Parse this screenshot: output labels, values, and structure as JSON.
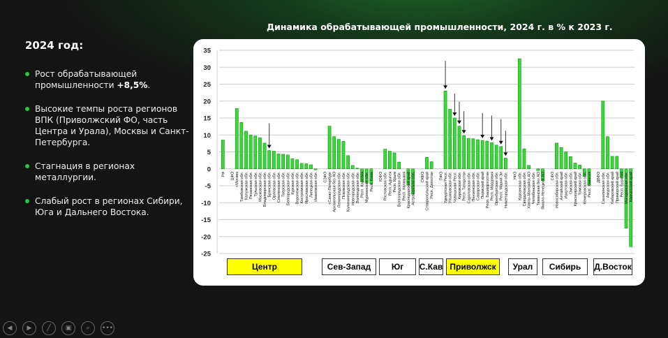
{
  "left_panel": {
    "heading": "2024 год:",
    "bullets": [
      {
        "text": "Рост обрабатывающей промышленности ",
        "bold": "+8,5%",
        "tail": "."
      },
      {
        "text": "Высокие темпы роста регионов ВПК (Приволжский ФО, часть Центра и Урала), Москвы и Санкт-Петербурга.",
        "bold": "",
        "tail": ""
      },
      {
        "text": "Стагнация в регионах металлургии.",
        "bold": "",
        "tail": ""
      },
      {
        "text": "Слабый рост в регионах Сибири, Юга и Дальнего Востока.",
        "bold": "",
        "tail": ""
      }
    ]
  },
  "controls": [
    {
      "name": "prev-icon",
      "glyph": "◀"
    },
    {
      "name": "next-icon",
      "glyph": "▶"
    },
    {
      "name": "pen-icon",
      "glyph": "╱"
    },
    {
      "name": "slides-icon",
      "glyph": "▣"
    },
    {
      "name": "zoom-icon",
      "glyph": "⌕"
    },
    {
      "name": "more-icon",
      "glyph": "•••"
    }
  ],
  "colors": {
    "bar": "#33dd33",
    "bar_border": "#1a8a1a",
    "highlight": "#ffff00",
    "grid": "#cccccc"
  },
  "chart_data": {
    "type": "bar",
    "title": "Динамика обрабатывающей промышленности, 2024 г. в % к 2023 г.",
    "xlabel": "",
    "ylabel": "",
    "ylim": [
      -25,
      35
    ],
    "yticks": [
      35,
      30,
      25,
      20,
      15,
      10,
      5,
      0,
      -5,
      -10,
      -15,
      -20,
      -25
    ],
    "grid": true,
    "categories": [
      "РФ",
      "",
      "ЦФО",
      "г.Москва",
      "Тамбовская обл.",
      "Калужская обл.",
      "Рязанская обл.",
      "Тульская обл.",
      "Московская обл.",
      "Владимирская обл.",
      "Брянская обл.",
      "Орловская обл.",
      "Смоленская обл.",
      "Тверская обл.",
      "Белгородская обл.",
      "Курская обл.",
      "Воронежская обл.",
      "Костромская обл.",
      "Ярославская обл.",
      "Липецкая обл.",
      "Ивановская обл.",
      "",
      "СЗФО",
      "г.Санкт-Петербург",
      "Архангельская без АО",
      "Ленинградская обл.",
      "Псковская обл.",
      "Калининградская обл.",
      "Новгородская обл.",
      "Вологодская обл.",
      "Респ. Карелия",
      "Мурманская обл.",
      "Респ. Коми",
      "",
      "ЮФО",
      "Ростовская обл.",
      "Респ. Адыгея",
      "Респ. Крым",
      "Волгоградская обл.",
      "Респ. Калмыкия",
      "Краснодарский край",
      "Астраханская обл.",
      "",
      "СКФО",
      "Ставропольский край",
      "Респ. Дагестан",
      "",
      "ПФО",
      "Удмуртская Респ.",
      "Ульяновская обл.",
      "Чувашская Респ.",
      "Кировская обл.",
      "Респ. Татарстан",
      "Саратовская обл.",
      "Пензенская обл.",
      "Самарская обл.",
      "Пермский край",
      "Респ. Башкортостан",
      "Респ. Мордовия",
      "Оренбургская обл.",
      "Респ. Марий Эл",
      "Нижегородская обл.",
      "",
      "УФО",
      "Курганская обл.",
      "Свердловская обл.",
      "Ханты-Мансийск.АО",
      "Челябинская обл.",
      "Тюменская без АО",
      "Ямало-Ненецкий АО",
      "",
      "СФО",
      "Новосибирская обл.",
      "Алтайский край",
      "Иркутская обл.",
      "Омская обл.",
      "Красноярский край",
      "Томская обл.",
      "Кемеровская обл.",
      "Респ. Хакасия",
      "",
      "ДВФО",
      "Сахалинская обл.",
      "Амурская обл.",
      "Хабаровский край",
      "Приморский край",
      "Респ. Бурятия",
      "Магаданская обл.",
      "Камчатский край"
    ],
    "values": [
      8.5,
      null,
      0,
      17.8,
      13.7,
      11.1,
      10.0,
      9.7,
      9.2,
      7.6,
      5.4,
      5.2,
      4.4,
      4.3,
      4.1,
      3.0,
      2.7,
      1.6,
      1.5,
      1.2,
      -0.3,
      null,
      0,
      12.6,
      9.5,
      8.7,
      8.1,
      3.9,
      1.0,
      0.2,
      -3.8,
      -4.2,
      -4.5,
      null,
      0,
      5.8,
      5.2,
      4.7,
      2.0,
      0,
      -4.8,
      -7.5,
      null,
      0,
      3.4,
      2.1,
      null,
      0,
      23.0,
      17.6,
      15.0,
      12.6,
      9.8,
      9.0,
      8.9,
      8.6,
      8.4,
      8.2,
      7.7,
      7.0,
      6.6,
      3.2,
      null,
      0,
      32.5,
      5.9,
      1.0,
      0,
      -0.5,
      -3.5,
      null,
      0,
      7.6,
      6.3,
      5.0,
      3.6,
      1.7,
      1.1,
      -2.2,
      -4.8,
      null,
      0,
      20.0,
      9.5,
      3.7,
      3.7,
      -2.6,
      -17.5,
      -23.0
    ],
    "annotations": {
      "arrows_on": [
        "Брянская обл.",
        "Удмуртская Респ.",
        "Чувашская Респ.",
        "Кировская обл.",
        "Респ. Татарстан",
        "Пермский край",
        "Респ. Мордовия",
        "Респ. Марий Эл",
        "Нижегородская обл."
      ]
    },
    "region_groups": [
      {
        "label": "Центр",
        "highlight": true
      },
      {
        "label": "Сев-Запад",
        "highlight": false
      },
      {
        "label": "Юг",
        "highlight": false
      },
      {
        "label": "С.Кав",
        "highlight": false
      },
      {
        "label": "Приволжск",
        "highlight": true
      },
      {
        "label": "Урал",
        "highlight": false
      },
      {
        "label": "Сибирь",
        "highlight": false
      },
      {
        "label": "Д.Восток",
        "highlight": false
      }
    ]
  }
}
